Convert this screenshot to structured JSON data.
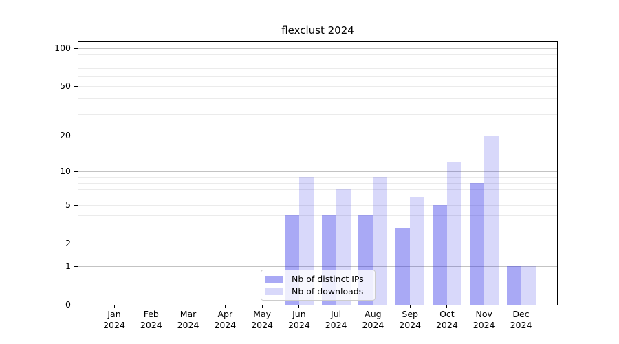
{
  "title": "flexclust 2024",
  "chart_data": {
    "type": "bar",
    "title": "flexclust 2024",
    "categories": [
      "Jan",
      "Feb",
      "Mar",
      "Apr",
      "May",
      "Jun",
      "Jul",
      "Aug",
      "Sep",
      "Oct",
      "Nov",
      "Dec"
    ],
    "year": "2024",
    "series": [
      {
        "name": "Nb of distinct IPs",
        "color": "#2828E666",
        "values": [
          0,
          0,
          0,
          0,
          0,
          4,
          4,
          4,
          3,
          5,
          8,
          1
        ]
      },
      {
        "name": "Nb of downloads",
        "color": "#2828E62E",
        "values": [
          0,
          0,
          0,
          0,
          0,
          9,
          7,
          9,
          6,
          12,
          20,
          1
        ]
      }
    ],
    "xlabel": "",
    "ylabel": "",
    "yscale": "log1p",
    "ylim": [
      0,
      112
    ],
    "y_tick_values": [
      0,
      1,
      2,
      5,
      10,
      20,
      50,
      100
    ],
    "y_tick_labels": [
      "0",
      "1",
      "2",
      "5",
      "10",
      "20",
      "50",
      "100"
    ],
    "y_major_gridlines": [
      1,
      10,
      100
    ],
    "y_minor_gridlines": [
      2,
      3,
      4,
      5,
      6,
      7,
      8,
      9,
      20,
      30,
      40,
      50,
      60,
      70,
      80,
      90
    ],
    "grid": true,
    "legend_position": "lower center-left inside plot"
  },
  "colors": {
    "bar_distinct_ips_solid": "#A9A9F5",
    "bar_downloads_solid": "#D8D8FA",
    "major_grid": "#C3C3C3",
    "minor_grid": "#EBEBEB",
    "axis": "#000000",
    "legend_border": "#CCCCCC",
    "legend_background": "rgba(255,255,255,0.8)",
    "text": "#000000"
  }
}
